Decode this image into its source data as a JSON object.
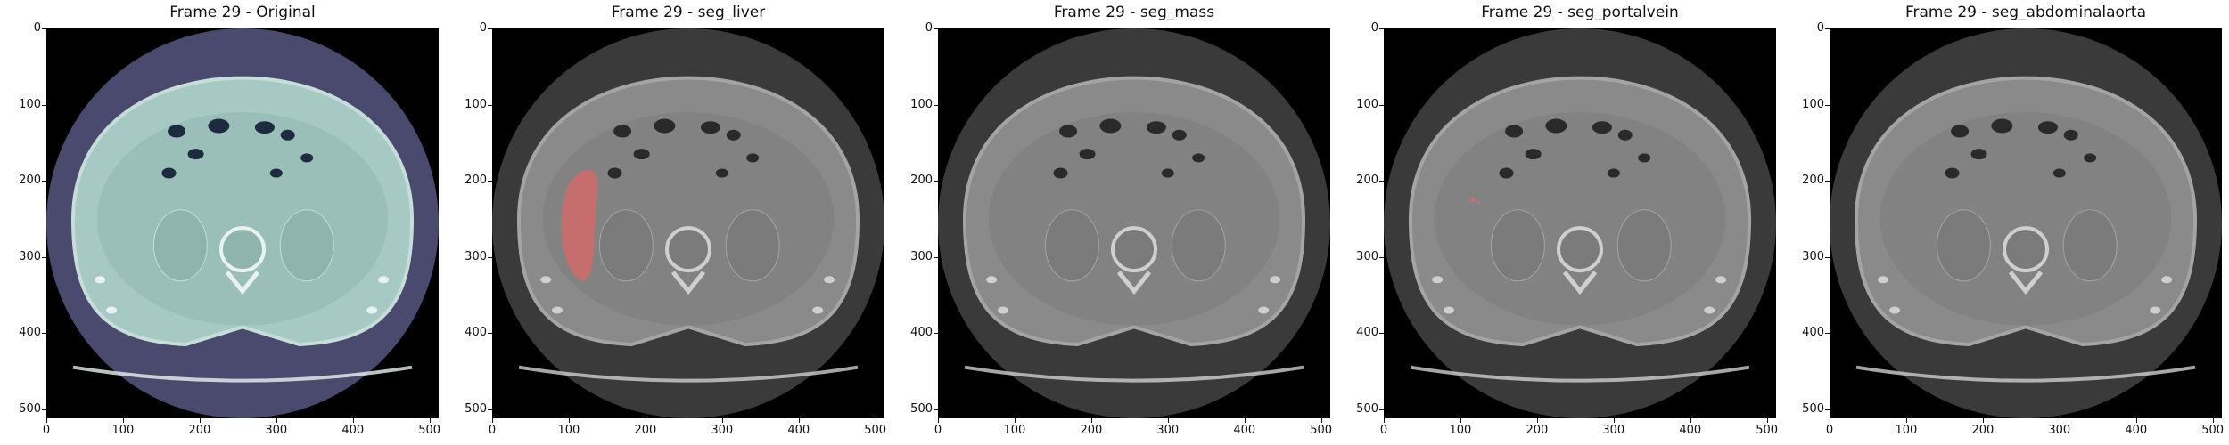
{
  "figure": {
    "panels": [
      {
        "title": "Frame 29 - Original",
        "variant": "original",
        "overlay": "none",
        "tint": "#a6c9c3",
        "bg_tint": "#4a4a6e"
      },
      {
        "title": "Frame 29 - seg_liver",
        "variant": "seg",
        "overlay": "liver",
        "overlay_color": "#d26b6b"
      },
      {
        "title": "Frame 29 - seg_mass",
        "variant": "seg",
        "overlay": "none"
      },
      {
        "title": "Frame 29 - seg_portalvein",
        "variant": "seg",
        "overlay": "portalvein",
        "overlay_color": "#d26b6b"
      },
      {
        "title": "Frame 29 - seg_abdominalaorta",
        "variant": "seg",
        "overlay": "none"
      }
    ],
    "x_ticks": [
      "0",
      "100",
      "200",
      "300",
      "400",
      "500"
    ],
    "y_ticks": [
      "0",
      "100",
      "200",
      "300",
      "400",
      "500"
    ],
    "axis_range": [
      0,
      512
    ]
  }
}
